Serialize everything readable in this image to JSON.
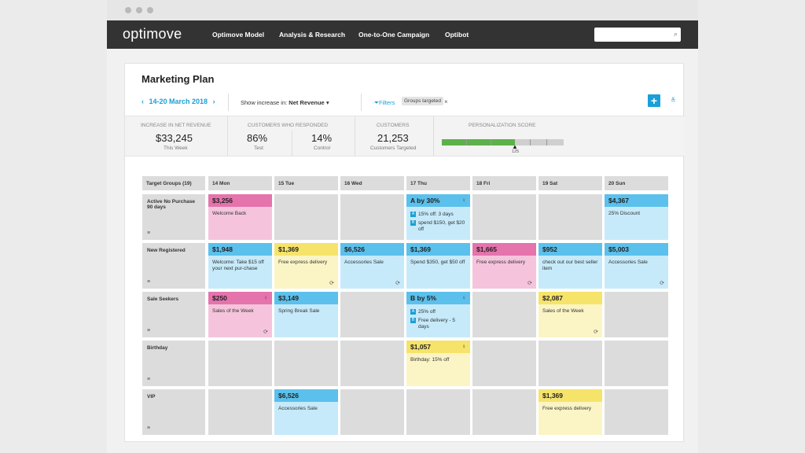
{
  "window": {
    "controls": [
      "close",
      "minimize",
      "maximize"
    ]
  },
  "nav": {
    "logo": "optimove",
    "items": [
      "Optimove Model",
      "Analysis & Research",
      "One-to-One Campaign",
      "Optibot"
    ],
    "search_placeholder": "",
    "search_icon": "search-icon"
  },
  "page": {
    "title": "Marketing Plan"
  },
  "toolbar": {
    "prev": "‹",
    "date_range": "14-20 March 2018",
    "next": "›",
    "show_increase_label": "Show increase in:",
    "show_increase_value": "Net Revenue",
    "filters_label": "Filters",
    "filter_chip": "Groups targeted",
    "filter_chip_close": "×",
    "add": "+",
    "more": "≚"
  },
  "stats": {
    "revenue": {
      "label": "Increase in Net Revenue",
      "value": "$33,245",
      "sub": "This Week"
    },
    "responded": {
      "label": "Customers Who Responded",
      "test_value": "86%",
      "test_label": "Test",
      "control_value": "14%",
      "control_label": "Control"
    },
    "customers": {
      "label": "Customers",
      "value": "21,253",
      "sub": "Customers Targeted"
    },
    "personalization": {
      "label": "Personalization Score",
      "score": 125,
      "fill_fraction": 0.6,
      "marker": "▲"
    }
  },
  "colors": {
    "pink": "#e573ac",
    "blue": "#5bc0ec",
    "yellow": "#f6e36a",
    "accent": "#1a9fd8",
    "score_green": "#5cb24a"
  },
  "grid": {
    "corner": "Target Groups (19)",
    "days": [
      "14 Mon",
      "15 Tue",
      "16 Wed",
      "17 Thu",
      "18 Fri",
      "19 Sat",
      "20 Sun"
    ],
    "rows": [
      {
        "name": "Active No Purchase 90 days",
        "icon": "≡"
      },
      {
        "name": "New Registered",
        "icon": "≡"
      },
      {
        "name": "Sale Seekers",
        "icon": "≡"
      },
      {
        "name": "Birthday",
        "icon": "≡"
      },
      {
        "name": "VIP",
        "icon": "≡"
      }
    ],
    "cards": {
      "r0d0": {
        "color": "pink",
        "title": "$3,256",
        "body": "Welcome Back"
      },
      "r0d3": {
        "color": "blue",
        "title": "A by 30%",
        "bulb": true,
        "options": [
          {
            "tag": "A",
            "text": "15% off: 3 days"
          },
          {
            "tag": "B",
            "text": "spend $150, get $20 off"
          }
        ]
      },
      "r0d6": {
        "color": "blue",
        "title": "$4,367",
        "body": "25% Discount"
      },
      "r1d0": {
        "color": "blue",
        "title": "$1,948",
        "body": "Welcome: Take $15 off your next pur-chase"
      },
      "r1d1": {
        "color": "yellow",
        "title": "$1,369",
        "body": "Free express delivery",
        "recur": true
      },
      "r1d2": {
        "color": "blue",
        "title": "$6,526",
        "body": "Accessories Sale",
        "recur": true
      },
      "r1d3": {
        "color": "blue",
        "title": "$1,369",
        "body": "Spend $350, get $50 off"
      },
      "r1d4": {
        "color": "pink",
        "title": "$1,665",
        "body": "Free express delivery",
        "recur": true
      },
      "r1d5": {
        "color": "blue",
        "title": "$952",
        "body": "check out our best seller item"
      },
      "r1d6": {
        "color": "blue",
        "title": "$5,003",
        "body": "Accessories Sale",
        "recur": true
      },
      "r2d0": {
        "color": "pink",
        "title": "$250",
        "body": "Sales of the Week",
        "bulb": true,
        "recur": true
      },
      "r2d1": {
        "color": "blue",
        "title": "$3,149",
        "body": "Spring Break Sale"
      },
      "r2d3": {
        "color": "blue",
        "title": "B by 5%",
        "bulb": true,
        "options": [
          {
            "tag": "A",
            "text": "25% off"
          },
          {
            "tag": "B",
            "text": "Free delivery - 5 days"
          }
        ]
      },
      "r2d5": {
        "color": "yellow",
        "title": "$2,087",
        "body": "Sales of the Week",
        "recur": true
      },
      "r3d3": {
        "color": "yellow",
        "title": "$1,057",
        "body": "Birthday: 15% off",
        "bulb": true
      },
      "r4d1": {
        "color": "blue",
        "title": "$6,526",
        "body": "Accessories Sale"
      },
      "r4d5": {
        "color": "yellow",
        "title": "$1,369",
        "body": "Free express delivery"
      }
    }
  }
}
